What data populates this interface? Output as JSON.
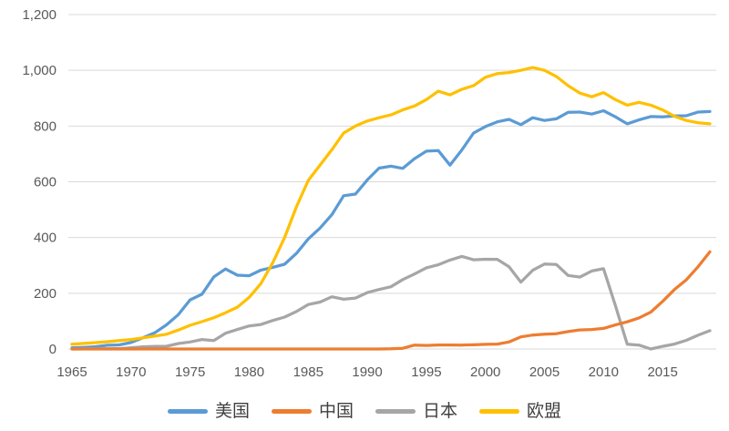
{
  "chart_data": {
    "type": "line",
    "title": "",
    "xlabel": "",
    "ylabel": "",
    "year_start": 1965,
    "year_end": 2019,
    "year_step": 1,
    "xlim": [
      1965,
      2019
    ],
    "ylim": [
      0,
      1200
    ],
    "grid": "horizontal-only",
    "legend_position": "bottom-center",
    "background_color": "#FFFFFF",
    "gridline_color": "#D9D9D9",
    "axis_label_color": "#595959",
    "legend_text_color": "#3F3F3F",
    "x_ticks": [
      1965,
      1970,
      1975,
      1980,
      1985,
      1990,
      1995,
      2000,
      2005,
      2010,
      2015
    ],
    "x_tick_labels": [
      "1965",
      "1970",
      "1975",
      "1980",
      "1985",
      "1990",
      "1995",
      "2000",
      "2005",
      "2010",
      "2015"
    ],
    "y_ticks": [
      0,
      200,
      400,
      600,
      800,
      1000,
      1200
    ],
    "y_tick_labels": [
      "0",
      "200",
      "400",
      "600",
      "800",
      "1,000",
      "1,200"
    ],
    "draw_order": [
      "us",
      "japan",
      "china",
      "eu"
    ],
    "series": [
      {
        "key": "us",
        "name": "美国",
        "color": "#5B9BD5",
        "values": [
          3.9,
          5.8,
          8.3,
          13.3,
          14.6,
          23.3,
          40.2,
          57.8,
          86.8,
          123.4,
          176.4,
          196.6,
          258.8,
          287,
          265,
          263,
          283,
          293,
          304,
          343,
          395,
          434,
          482,
          550,
          556,
          607,
          649,
          656,
          648,
          683,
          710,
          712,
          660,
          714,
          775,
          798,
          815,
          824,
          805,
          830,
          820,
          826,
          849,
          850,
          843,
          855,
          833,
          808,
          822,
          834,
          833,
          836,
          837,
          850,
          852
        ]
      },
      {
        "key": "china",
        "name": "中国",
        "color": "#ED7D31",
        "values": [
          0,
          0,
          0,
          0,
          0,
          0,
          0,
          0,
          0,
          0,
          0,
          0,
          0,
          0,
          0,
          0,
          0,
          0,
          0,
          0,
          0,
          0,
          0,
          0,
          0,
          0,
          0,
          0.5,
          2.6,
          14,
          12.8,
          14.4,
          14.4,
          14.1,
          15,
          16.7,
          17.5,
          25.1,
          43.5,
          50.1,
          53.1,
          54.8,
          62.6,
          68.4,
          70.1,
          73.9,
          86.4,
          97.4,
          111.6,
          132.5,
          170.8,
          213.3,
          248.1,
          295,
          348.7
        ]
      },
      {
        "key": "japan",
        "name": "日本",
        "color": "#A6A6A6",
        "values": [
          0,
          0.2,
          0.7,
          1.0,
          1.4,
          4.6,
          8.0,
          9.5,
          9.7,
          19.7,
          25.1,
          34.1,
          30.5,
          56.5,
          69.9,
          82.6,
          87.8,
          102.4,
          114.3,
          134.3,
          159.6,
          168.3,
          187.5,
          178.4,
          182.9,
          202.3,
          213.5,
          223.3,
          249.3,
          269.1,
          291.3,
          302.2,
          319.1,
          332.3,
          320,
          322,
          321.9,
          295.1,
          240.1,
          282.4,
          304.8,
          303.4,
          263.8,
          258,
          279.8,
          288.2,
          156.2,
          17.2,
          13.9,
          0,
          9.4,
          17.5,
          31.1,
          49.3,
          65.7
        ]
      },
      {
        "key": "eu",
        "name": "欧盟",
        "color": "#FFC000",
        "values": [
          17,
          20,
          23,
          26,
          30,
          34,
          40,
          46,
          53,
          68,
          85,
          98,
          112,
          130,
          150,
          185,
          235,
          310,
          400,
          510,
          605,
          660,
          715,
          775,
          800,
          818,
          830,
          840,
          858,
          872,
          895,
          925,
          912,
          932,
          945,
          975,
          988,
          992,
          1000,
          1010,
          1000,
          978,
          945,
          918,
          905,
          920,
          895,
          875,
          885,
          875,
          858,
          835,
          820,
          812,
          808
        ]
      }
    ]
  }
}
